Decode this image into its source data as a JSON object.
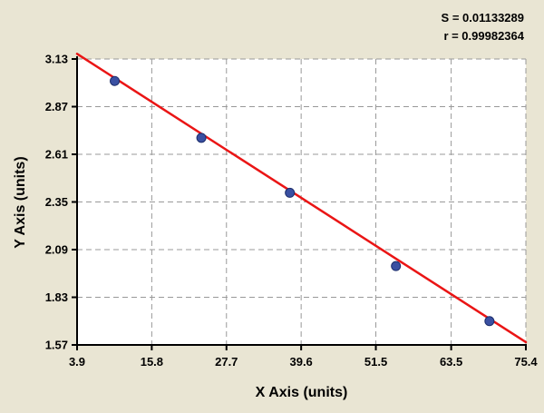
{
  "chart_data": {
    "type": "scatter",
    "title": "",
    "xlabel": "X Axis (units)",
    "ylabel": "Y Axis (units)",
    "xlim": [
      3.9,
      75.4
    ],
    "ylim": [
      1.57,
      3.13
    ],
    "x_ticks": [
      "3.9",
      "15.8",
      "27.7",
      "39.6",
      "51.5",
      "63.5",
      "75.4"
    ],
    "y_ticks": [
      "1.57",
      "1.83",
      "2.09",
      "2.35",
      "2.61",
      "2.87",
      "3.13"
    ],
    "grid": "dashed",
    "legend": "none",
    "annotations": {
      "s": "S = 0.01133289",
      "r": "r = 0.99982364"
    },
    "points": [
      {
        "x": 9.9,
        "y": 3.01
      },
      {
        "x": 23.7,
        "y": 2.7
      },
      {
        "x": 37.8,
        "y": 2.4
      },
      {
        "x": 54.7,
        "y": 2.0
      },
      {
        "x": 69.6,
        "y": 1.7
      }
    ],
    "fit_line": {
      "x": [
        3.9,
        75.4
      ],
      "y": [
        3.158,
        1.585
      ]
    },
    "colors": {
      "background": "#e9e5d3",
      "plot_background": "#ffffff",
      "grid": "#999999",
      "axis": "#000000",
      "line": "#ea1515",
      "point_fill": "#3a50a2",
      "point_edge": "#1c2d6b"
    }
  }
}
